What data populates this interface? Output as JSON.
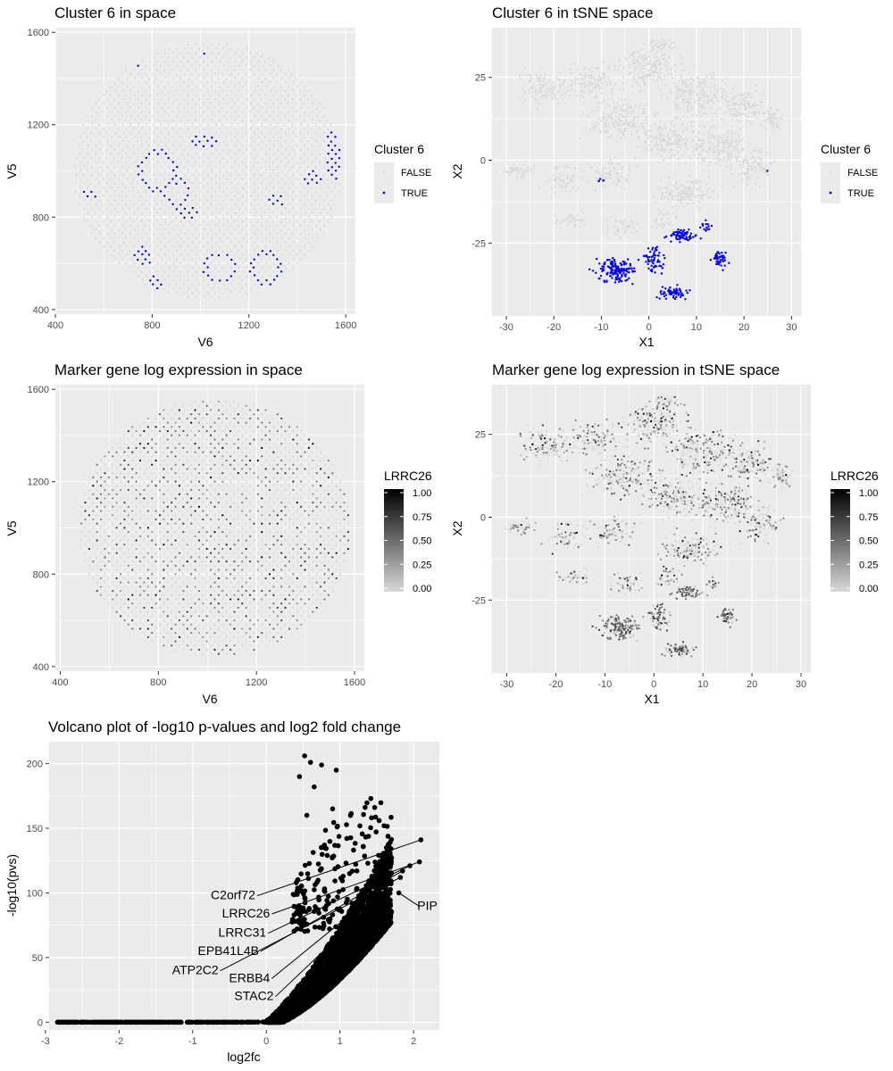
{
  "chart_data": [
    {
      "id": "p1",
      "type": "scatter",
      "title": "Cluster 6 in space",
      "xlabel": "V6",
      "ylabel": "V5",
      "xlim": [
        400,
        1640
      ],
      "ylim": [
        380,
        1620
      ],
      "xticks": [
        400,
        800,
        1200,
        1600
      ],
      "yticks": [
        400,
        800,
        1200,
        1600
      ],
      "legend": {
        "title": "Cluster 6",
        "position": "right",
        "entries": [
          {
            "label": "FALSE",
            "color": "#d9d9d9"
          },
          {
            "label": "TRUE",
            "color": "#0000ee"
          }
        ]
      },
      "grid": true
    },
    {
      "id": "p2",
      "type": "scatter",
      "title": "Cluster 6 in tSNE space",
      "xlabel": "X1",
      "ylabel": "X2",
      "xlim": [
        -33,
        32
      ],
      "ylim": [
        -47,
        40
      ],
      "xticks": [
        -30,
        -20,
        -10,
        0,
        10,
        20,
        30
      ],
      "yticks": [
        -25,
        0,
        25
      ],
      "legend": {
        "title": "Cluster 6",
        "position": "right",
        "entries": [
          {
            "label": "FALSE",
            "color": "#d9d9d9"
          },
          {
            "label": "TRUE",
            "color": "#0000ee"
          }
        ]
      },
      "grid": true
    },
    {
      "id": "p3",
      "type": "scatter",
      "title": "Marker gene log expression in space",
      "xlabel": "V6",
      "ylabel": "V5",
      "xlim": [
        380,
        1640
      ],
      "ylim": [
        380,
        1620
      ],
      "xticks": [
        400,
        800,
        1200,
        1600
      ],
      "yticks": [
        400,
        800,
        1200,
        1600
      ],
      "legend": {
        "title": "LRRC26",
        "position": "right",
        "colorbar": {
          "low": "#d9d9d9",
          "high": "#000000",
          "ticks": [
            "1.00",
            "0.75",
            "0.50",
            "0.25",
            "0.00"
          ]
        }
      },
      "grid": true
    },
    {
      "id": "p4",
      "type": "scatter",
      "title": "Marker gene log expression in tSNE space",
      "xlabel": "X1",
      "ylabel": "X2",
      "xlim": [
        -33,
        32
      ],
      "ylim": [
        -47,
        40
      ],
      "xticks": [
        -30,
        -20,
        -10,
        0,
        10,
        20,
        30
      ],
      "yticks": [
        -25,
        0,
        25
      ],
      "legend": {
        "title": "LRRC26",
        "position": "right",
        "colorbar": {
          "low": "#d9d9d9",
          "high": "#000000",
          "ticks": [
            "1.00",
            "0.75",
            "0.50",
            "0.25",
            "0.00"
          ]
        }
      },
      "grid": true
    },
    {
      "id": "p5",
      "type": "scatter",
      "title": "Volcano plot of -log10 p-values and log2 fold change",
      "xlabel": "log2fc",
      "ylabel": "-log10(pvs)",
      "xlim": [
        -2.95,
        2.35
      ],
      "ylim": [
        -6,
        217
      ],
      "xticks": [
        -3,
        -2,
        -1,
        0,
        1,
        2
      ],
      "yticks": [
        0,
        50,
        100,
        150,
        200
      ],
      "labeled_points": [
        {
          "label": "C2orf72",
          "x": 2.1,
          "y": 141
        },
        {
          "label": "LRRC26",
          "x": 2.08,
          "y": 124
        },
        {
          "label": "LRRC31",
          "x": 1.95,
          "y": 121
        },
        {
          "label": "EPB41L4B",
          "x": 1.85,
          "y": 117
        },
        {
          "label": "ATP2C2",
          "x": 1.82,
          "y": 112
        },
        {
          "label": "ERBB4",
          "x": 1.5,
          "y": 100
        },
        {
          "label": "STAC2",
          "x": 1.55,
          "y": 97
        },
        {
          "label": "PIP",
          "x": 1.8,
          "y": 100
        }
      ],
      "grid": true
    }
  ]
}
